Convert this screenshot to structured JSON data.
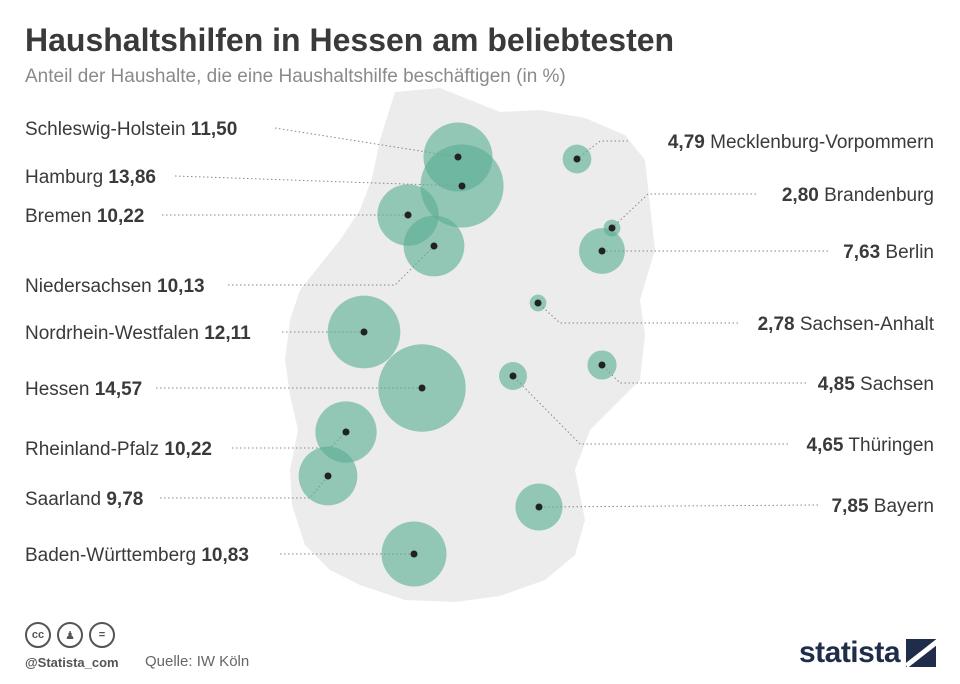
{
  "header": {
    "title": "Haushaltshilfen in Hessen am beliebtesten",
    "subtitle": "Anteil der Haushalte, die eine Haushaltshilfe beschäftigen (in %)"
  },
  "footer": {
    "handle": "@Statista_com",
    "source": "Quelle: IW Köln",
    "brand": "statista"
  },
  "colors": {
    "bubble": "#5aaf93",
    "map": "#ececec",
    "dot": "#222222"
  },
  "chart_data": {
    "type": "bubble",
    "unit": "%",
    "series": [
      {
        "region": "Schleswig-Holstein",
        "value": 11.5,
        "label": "11,50"
      },
      {
        "region": "Hamburg",
        "value": 13.86,
        "label": "13,86"
      },
      {
        "region": "Bremen",
        "value": 10.22,
        "label": "10,22"
      },
      {
        "region": "Niedersachsen",
        "value": 10.13,
        "label": "10,13"
      },
      {
        "region": "Nordrhein-Westfalen",
        "value": 12.11,
        "label": "12,11"
      },
      {
        "region": "Hessen",
        "value": 14.57,
        "label": "14,57"
      },
      {
        "region": "Rheinland-Pfalz",
        "value": 10.22,
        "label": "10,22"
      },
      {
        "region": "Saarland",
        "value": 9.78,
        "label": "9,78"
      },
      {
        "region": "Baden-Württemberg",
        "value": 10.83,
        "label": "10,83"
      },
      {
        "region": "Mecklenburg-Vorpommern",
        "value": 4.79,
        "label": "4,79"
      },
      {
        "region": "Brandenburg",
        "value": 2.8,
        "label": "2,80"
      },
      {
        "region": "Berlin",
        "value": 7.63,
        "label": "7,63"
      },
      {
        "region": "Sachsen-Anhalt",
        "value": 2.78,
        "label": "2,78"
      },
      {
        "region": "Sachsen",
        "value": 4.85,
        "label": "4,85"
      },
      {
        "region": "Thüringen",
        "value": 4.65,
        "label": "4,65"
      },
      {
        "region": "Bayern",
        "value": 7.85,
        "label": "7,85"
      }
    ]
  }
}
